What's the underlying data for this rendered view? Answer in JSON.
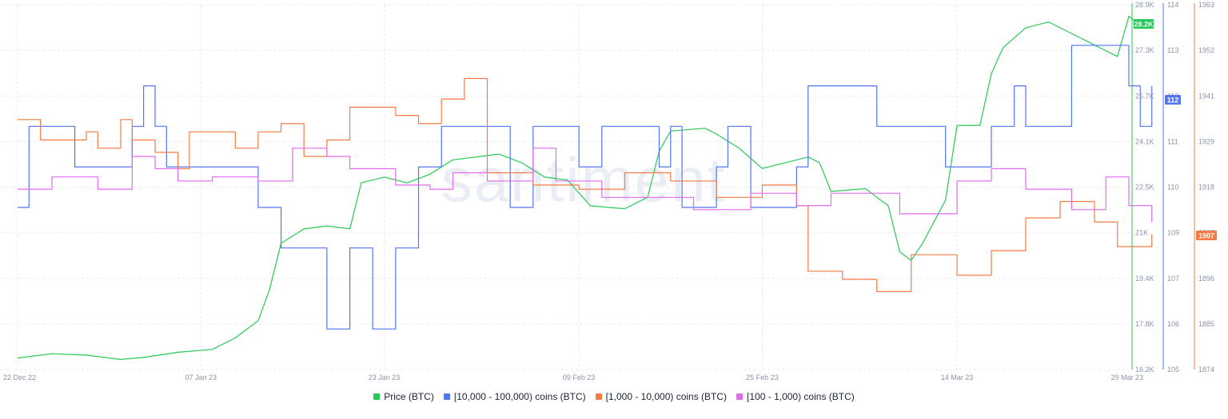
{
  "chart_data": {
    "type": "line",
    "watermark": "santiment",
    "x_dates": [
      "2022-12-22",
      "2023-01-07",
      "2023-01-23",
      "2023-02-09",
      "2023-02-25",
      "2023-03-14",
      "2023-03-29"
    ],
    "x_tick_labels": [
      "22 Dec 22",
      "07 Jan 23",
      "23 Jan 23",
      "09 Feb 23",
      "25 Feb 23",
      "14 Mar 23",
      "29 Mar 23"
    ],
    "axes": {
      "price": {
        "ticks": [
          "28.9K",
          "27.3K",
          "25.7K",
          "24.1K",
          "22.5K",
          "21K",
          "19.4K",
          "17.8K",
          "16.2K"
        ],
        "min": 16200,
        "max": 28900,
        "current_label": "28.2K",
        "color": "#26c953"
      },
      "blue": {
        "ticks": [
          "114",
          "113",
          "112",
          "111",
          "110",
          "109",
          "107",
          "106",
          "105"
        ],
        "min": 105,
        "max": 114,
        "current_label": "112",
        "color": "#5275f5"
      },
      "orange": {
        "ticks": [
          "1963",
          "1952",
          "1941",
          "1929",
          "1918",
          "1907",
          "1896",
          "1885",
          "1874"
        ],
        "min": 1874,
        "max": 1963,
        "current_label": "1907",
        "color": "#f47b45"
      }
    },
    "grid": true,
    "legend_placement": "bottom-center",
    "series": [
      {
        "name": "Price (BTC)",
        "axis": "price",
        "color": "#26c953",
        "points": [
          [
            "2022-12-22",
            16600
          ],
          [
            "2022-12-25",
            16750
          ],
          [
            "2022-12-28",
            16700
          ],
          [
            "2022-12-31",
            16550
          ],
          [
            "2023-01-02",
            16620
          ],
          [
            "2023-01-05",
            16800
          ],
          [
            "2023-01-08",
            16900
          ],
          [
            "2023-01-10",
            17300
          ],
          [
            "2023-01-12",
            17900
          ],
          [
            "2023-01-13",
            19000
          ],
          [
            "2023-01-14",
            20600
          ],
          [
            "2023-01-16",
            21100
          ],
          [
            "2023-01-18",
            21200
          ],
          [
            "2023-01-20",
            21100
          ],
          [
            "2023-01-21",
            22700
          ],
          [
            "2023-01-23",
            22900
          ],
          [
            "2023-01-25",
            22700
          ],
          [
            "2023-01-27",
            23000
          ],
          [
            "2023-01-29",
            23500
          ],
          [
            "2023-02-02",
            23700
          ],
          [
            "2023-02-04",
            23400
          ],
          [
            "2023-02-06",
            22900
          ],
          [
            "2023-02-08",
            22800
          ],
          [
            "2023-02-10",
            21900
          ],
          [
            "2023-02-13",
            21800
          ],
          [
            "2023-02-15",
            22200
          ],
          [
            "2023-02-16",
            23800
          ],
          [
            "2023-02-17",
            24500
          ],
          [
            "2023-02-20",
            24600
          ],
          [
            "2023-02-21",
            24400
          ],
          [
            "2023-02-23",
            23900
          ],
          [
            "2023-02-25",
            23200
          ],
          [
            "2023-02-27",
            23400
          ],
          [
            "2023-03-01",
            23600
          ],
          [
            "2023-03-02",
            23400
          ],
          [
            "2023-03-03",
            22400
          ],
          [
            "2023-03-06",
            22500
          ],
          [
            "2023-03-08",
            21900
          ],
          [
            "2023-03-09",
            20300
          ],
          [
            "2023-03-10",
            20000
          ],
          [
            "2023-03-11",
            20600
          ],
          [
            "2023-03-13",
            22100
          ],
          [
            "2023-03-14",
            24700
          ],
          [
            "2023-03-16",
            24700
          ],
          [
            "2023-03-17",
            26500
          ],
          [
            "2023-03-18",
            27400
          ],
          [
            "2023-03-20",
            28100
          ],
          [
            "2023-03-22",
            28300
          ],
          [
            "2023-03-24",
            27900
          ],
          [
            "2023-03-26",
            27500
          ],
          [
            "2023-03-28",
            27100
          ],
          [
            "2023-03-29",
            28500
          ],
          [
            "2023-03-30",
            28200
          ]
        ]
      },
      {
        "name": "[10,000 - 100,000) coins (BTC)",
        "axis": "blue",
        "color": "#5275f5",
        "points": [
          [
            "2022-12-22",
            109
          ],
          [
            "2022-12-23",
            111
          ],
          [
            "2022-12-27",
            110
          ],
          [
            "2023-01-01",
            111
          ],
          [
            "2023-01-02",
            112
          ],
          [
            "2023-01-03",
            111
          ],
          [
            "2023-01-04",
            110
          ],
          [
            "2023-01-12",
            109
          ],
          [
            "2023-01-14",
            108
          ],
          [
            "2023-01-18",
            106
          ],
          [
            "2023-01-20",
            108
          ],
          [
            "2023-01-22",
            106
          ],
          [
            "2023-01-24",
            108
          ],
          [
            "2023-01-26",
            110
          ],
          [
            "2023-01-28",
            111
          ],
          [
            "2023-02-03",
            109
          ],
          [
            "2023-02-05",
            111
          ],
          [
            "2023-02-09",
            110
          ],
          [
            "2023-02-11",
            111
          ],
          [
            "2023-02-16",
            110
          ],
          [
            "2023-02-17",
            111
          ],
          [
            "2023-02-18",
            109
          ],
          [
            "2023-02-21",
            110
          ],
          [
            "2023-02-22",
            111
          ],
          [
            "2023-02-24",
            109
          ],
          [
            "2023-02-28",
            110
          ],
          [
            "2023-03-01",
            112
          ],
          [
            "2023-03-07",
            111
          ],
          [
            "2023-03-13",
            110
          ],
          [
            "2023-03-17",
            111
          ],
          [
            "2023-03-19",
            112
          ],
          [
            "2023-03-20",
            111
          ],
          [
            "2023-03-24",
            113
          ],
          [
            "2023-03-29",
            112
          ],
          [
            "2023-03-30",
            111
          ],
          [
            "2023-03-31",
            112
          ]
        ]
      },
      {
        "name": "[1,000 - 10,000) coins (BTC)",
        "axis": "orange",
        "color": "#f47b45",
        "points": [
          [
            "2022-12-22",
            1935
          ],
          [
            "2022-12-24",
            1930
          ],
          [
            "2022-12-28",
            1932
          ],
          [
            "2022-12-29",
            1928
          ],
          [
            "2022-12-31",
            1935
          ],
          [
            "2023-01-01",
            1930
          ],
          [
            "2023-01-03",
            1927
          ],
          [
            "2023-01-05",
            1923
          ],
          [
            "2023-01-06",
            1932
          ],
          [
            "2023-01-10",
            1928
          ],
          [
            "2023-01-12",
            1932
          ],
          [
            "2023-01-14",
            1934
          ],
          [
            "2023-01-16",
            1926
          ],
          [
            "2023-01-18",
            1930
          ],
          [
            "2023-01-20",
            1938
          ],
          [
            "2023-01-24",
            1936
          ],
          [
            "2023-01-26",
            1934
          ],
          [
            "2023-01-28",
            1940
          ],
          [
            "2023-01-30",
            1945
          ],
          [
            "2023-02-01",
            1922
          ],
          [
            "2023-02-05",
            1919
          ],
          [
            "2023-02-09",
            1918
          ],
          [
            "2023-02-13",
            1922
          ],
          [
            "2023-02-17",
            1920
          ],
          [
            "2023-02-21",
            1916
          ],
          [
            "2023-02-25",
            1919
          ],
          [
            "2023-02-28",
            1914
          ],
          [
            "2023-03-01",
            1898
          ],
          [
            "2023-03-04",
            1896
          ],
          [
            "2023-03-07",
            1893
          ],
          [
            "2023-03-10",
            1902
          ],
          [
            "2023-03-14",
            1897
          ],
          [
            "2023-03-17",
            1903
          ],
          [
            "2023-03-20",
            1911
          ],
          [
            "2023-03-23",
            1915
          ],
          [
            "2023-03-26",
            1910
          ],
          [
            "2023-03-28",
            1904
          ],
          [
            "2023-03-31",
            1907
          ]
        ]
      },
      {
        "name": "[100 - 1,000) coins (BTC)",
        "axis": "orange",
        "color": "#e46af0",
        "points": [
          [
            "2022-12-22",
            1918
          ],
          [
            "2022-12-25",
            1921
          ],
          [
            "2022-12-29",
            1918
          ],
          [
            "2023-01-01",
            1926
          ],
          [
            "2023-01-03",
            1923
          ],
          [
            "2023-01-05",
            1920
          ],
          [
            "2023-01-08",
            1921
          ],
          [
            "2023-01-12",
            1920
          ],
          [
            "2023-01-15",
            1928
          ],
          [
            "2023-01-18",
            1926
          ],
          [
            "2023-01-20",
            1923
          ],
          [
            "2023-01-24",
            1919
          ],
          [
            "2023-01-27",
            1918
          ],
          [
            "2023-01-29",
            1922
          ],
          [
            "2023-02-01",
            1920
          ],
          [
            "2023-02-05",
            1928
          ],
          [
            "2023-02-07",
            1920
          ],
          [
            "2023-02-11",
            1916
          ],
          [
            "2023-02-15",
            1916
          ],
          [
            "2023-02-19",
            1913
          ],
          [
            "2023-02-24",
            1917
          ],
          [
            "2023-02-28",
            1914
          ],
          [
            "2023-03-03",
            1917
          ],
          [
            "2023-03-06",
            1917
          ],
          [
            "2023-03-09",
            1912
          ],
          [
            "2023-03-14",
            1920
          ],
          [
            "2023-03-17",
            1923
          ],
          [
            "2023-03-20",
            1918
          ],
          [
            "2023-03-24",
            1913
          ],
          [
            "2023-03-27",
            1921
          ],
          [
            "2023-03-29",
            1914
          ],
          [
            "2023-03-31",
            1910
          ]
        ]
      }
    ]
  }
}
